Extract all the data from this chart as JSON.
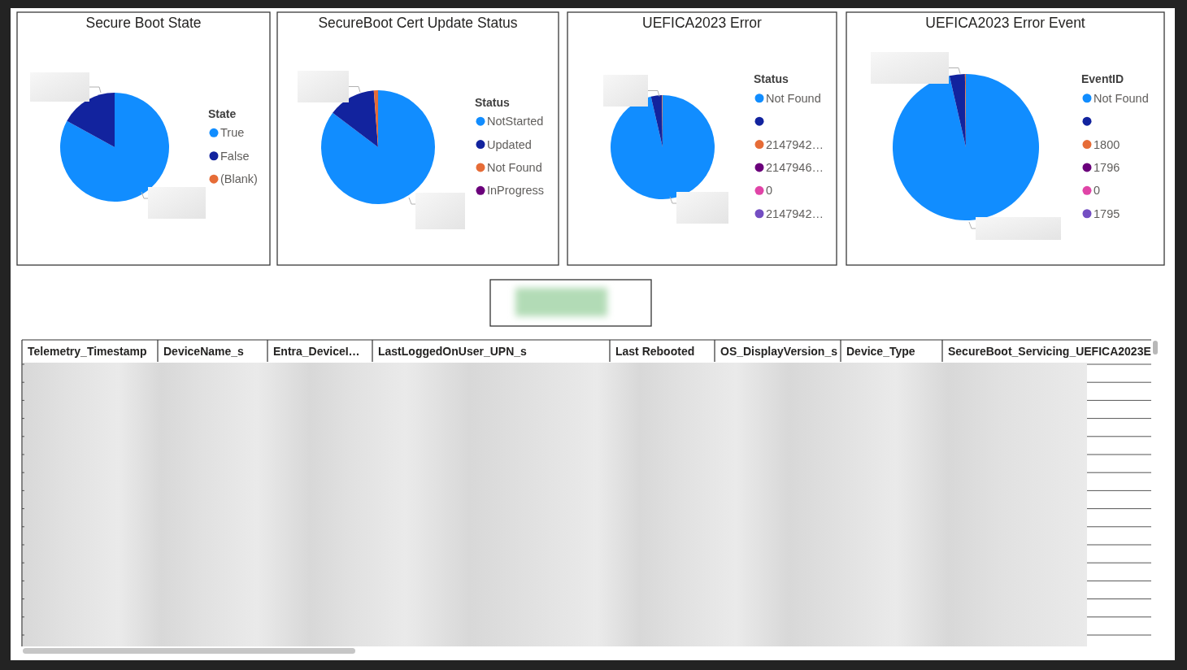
{
  "chart_data": [
    {
      "type": "pie",
      "title": "Secure Boot State",
      "legend_title": "State",
      "categories": [
        "True",
        "False",
        "(Blank)"
      ],
      "values": [
        83,
        17,
        0
      ],
      "colors": [
        "#118dff",
        "#12239e",
        "#e66c37"
      ],
      "legend": "right"
    },
    {
      "type": "pie",
      "title": "SecureBoot Cert Update Status",
      "legend_title": "Status",
      "categories": [
        "NotStarted",
        "Updated",
        "Not Found",
        "InProgress"
      ],
      "values": [
        85.3,
        13.5,
        1.2,
        0
      ],
      "colors": [
        "#118dff",
        "#12239e",
        "#e66c37",
        "#6b007b"
      ],
      "legend": "right"
    },
    {
      "type": "pie",
      "title": "UEFICA2023 Error",
      "legend_title": "Status",
      "categories": [
        "Not Found",
        null,
        "2147942…",
        "2147946…",
        "0",
        "2147942…"
      ],
      "values": [
        96.4,
        3.4,
        0.2,
        0,
        0,
        0
      ],
      "colors": [
        "#118dff",
        "#12239e",
        "#e66c37",
        "#6b007b",
        "#e044a7",
        "#744ec2"
      ],
      "legend": "right"
    },
    {
      "type": "pie",
      "title": "UEFICA2023 Error Event",
      "legend_title": "EventID",
      "categories": [
        "Not Found",
        null,
        "1800",
        "1796",
        "0",
        "1795"
      ],
      "values": [
        96.4,
        3.4,
        0.2,
        0,
        0,
        0
      ],
      "colors": [
        "#118dff",
        "#12239e",
        "#e66c37",
        "#6b007b",
        "#e044a7",
        "#744ec2"
      ],
      "legend": "right"
    },
    {
      "type": "other",
      "annotations": [
        "Telemetry_Timestamp",
        "DeviceName_s",
        "Entra_DeviceI…",
        "LastLoggedOnUser_UPN_s",
        "Last Rebooted",
        "OS_DisplayVersion_s",
        "Device_Type",
        "SecureBoot_Servicing_UEFICA2023E"
      ]
    }
  ]
}
